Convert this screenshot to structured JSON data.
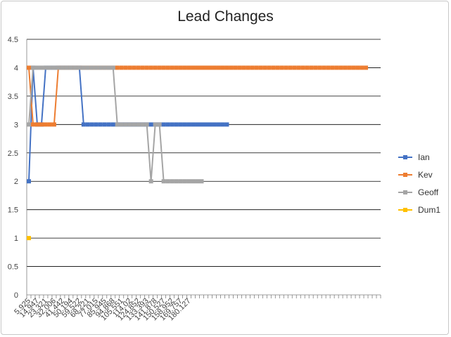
{
  "chart_data": {
    "type": "line",
    "title": "Lead Changes",
    "xlabel": "",
    "ylabel": "",
    "ylim": [
      0,
      4.5
    ],
    "yticks": [
      "0",
      "0.5",
      "1",
      "1.5",
      "2",
      "2.5",
      "3",
      "3.5",
      "4",
      "4.5"
    ],
    "grid": true,
    "legend_position": "right",
    "x_tick_labels": [
      "5.925",
      "14.947",
      "23.321",
      "32.006",
      "41.442",
      "50.194",
      "59.522",
      "68.221",
      "77.015",
      "85.945",
      "94.868",
      "105.551",
      "114.02",
      "124.852",
      "133.393",
      "141.878",
      "150.527",
      "158.952",
      "169.757",
      "180.127"
    ],
    "series": [
      {
        "name": "Ian",
        "color": "#4472C4",
        "values": [
          2,
          4,
          3,
          3,
          4,
          4,
          4,
          4,
          4,
          4,
          4,
          4,
          4,
          3,
          3,
          3,
          3,
          3,
          3,
          3,
          3,
          3,
          3,
          3,
          3,
          3,
          3,
          3,
          3,
          3,
          3,
          3,
          3,
          3,
          3,
          3,
          3,
          3,
          3,
          3,
          3,
          3,
          3,
          3,
          3,
          3,
          3,
          3
        ]
      },
      {
        "name": "Kev",
        "color": "#ED7D31",
        "values": [
          4,
          3,
          3,
          3,
          3,
          3,
          3,
          4,
          4,
          4,
          4,
          4,
          4,
          4,
          4,
          4,
          4,
          4,
          4,
          4,
          4,
          4,
          4,
          4,
          4,
          4,
          4,
          4,
          4,
          4,
          4,
          4,
          4,
          4,
          4,
          4,
          4,
          4,
          4,
          4,
          4,
          4,
          4,
          4,
          4,
          4,
          4,
          4,
          4,
          4,
          4,
          4,
          4,
          4,
          4,
          4,
          4,
          4,
          4,
          4,
          4,
          4,
          4,
          4,
          4,
          4,
          4,
          4,
          4,
          4,
          4,
          4,
          4,
          4,
          4,
          4,
          4,
          4,
          4,
          4,
          4
        ]
      },
      {
        "name": "Geoff",
        "color": "#A5A5A5",
        "values": [
          3,
          4,
          4,
          4,
          4,
          4,
          4,
          4,
          4,
          4,
          4,
          4,
          4,
          4,
          4,
          4,
          4,
          4,
          4,
          4,
          4,
          3,
          3,
          3,
          3,
          3,
          3,
          3,
          3,
          2,
          3,
          3,
          2,
          2,
          2,
          2,
          2,
          2,
          2,
          2,
          2,
          2
        ]
      },
      {
        "name": "Dum1",
        "color": "#FFC000",
        "values": [
          1
        ]
      }
    ]
  }
}
